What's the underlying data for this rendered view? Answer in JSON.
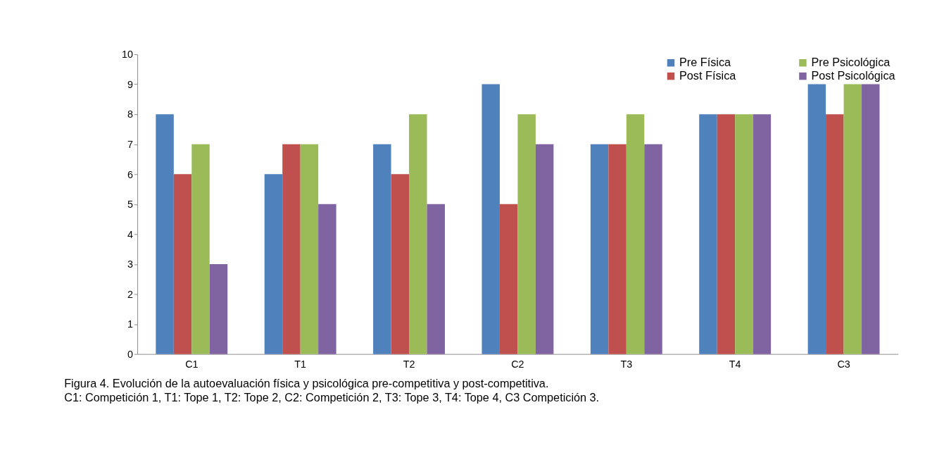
{
  "chart_data": {
    "type": "bar",
    "categories": [
      "C1",
      "T1",
      "T2",
      "C2",
      "T3",
      "T4",
      "C3"
    ],
    "series": [
      {
        "name": "Pre Física",
        "color": "#4f81bd",
        "values": [
          8,
          6,
          7,
          9,
          7,
          8,
          9
        ]
      },
      {
        "name": "Post Física",
        "color": "#c0504d",
        "values": [
          6,
          7,
          6,
          5,
          7,
          8,
          8
        ]
      },
      {
        "name": "Pre Psicológica",
        "color": "#9bbb59",
        "values": [
          7,
          7,
          8,
          8,
          8,
          8,
          9
        ]
      },
      {
        "name": "Post Psicológica",
        "color": "#8064a2",
        "values": [
          3,
          5,
          5,
          7,
          7,
          8,
          9
        ]
      }
    ],
    "ylim": [
      0,
      10
    ],
    "yticks": [
      0,
      1,
      2,
      3,
      4,
      5,
      6,
      7,
      8,
      9,
      10
    ],
    "grid": false,
    "legend": "top right",
    "annotations": [
      "Figura 4. Evolución de la autoevaluación física y psicológica pre-competitiva y post-competitiva.",
      "C1: Competición 1, T1: Tope 1, T2: Tope 2, C2: Competición 2, T3: Tope 3, T4: Tope 4, C3 Competición 3."
    ]
  }
}
